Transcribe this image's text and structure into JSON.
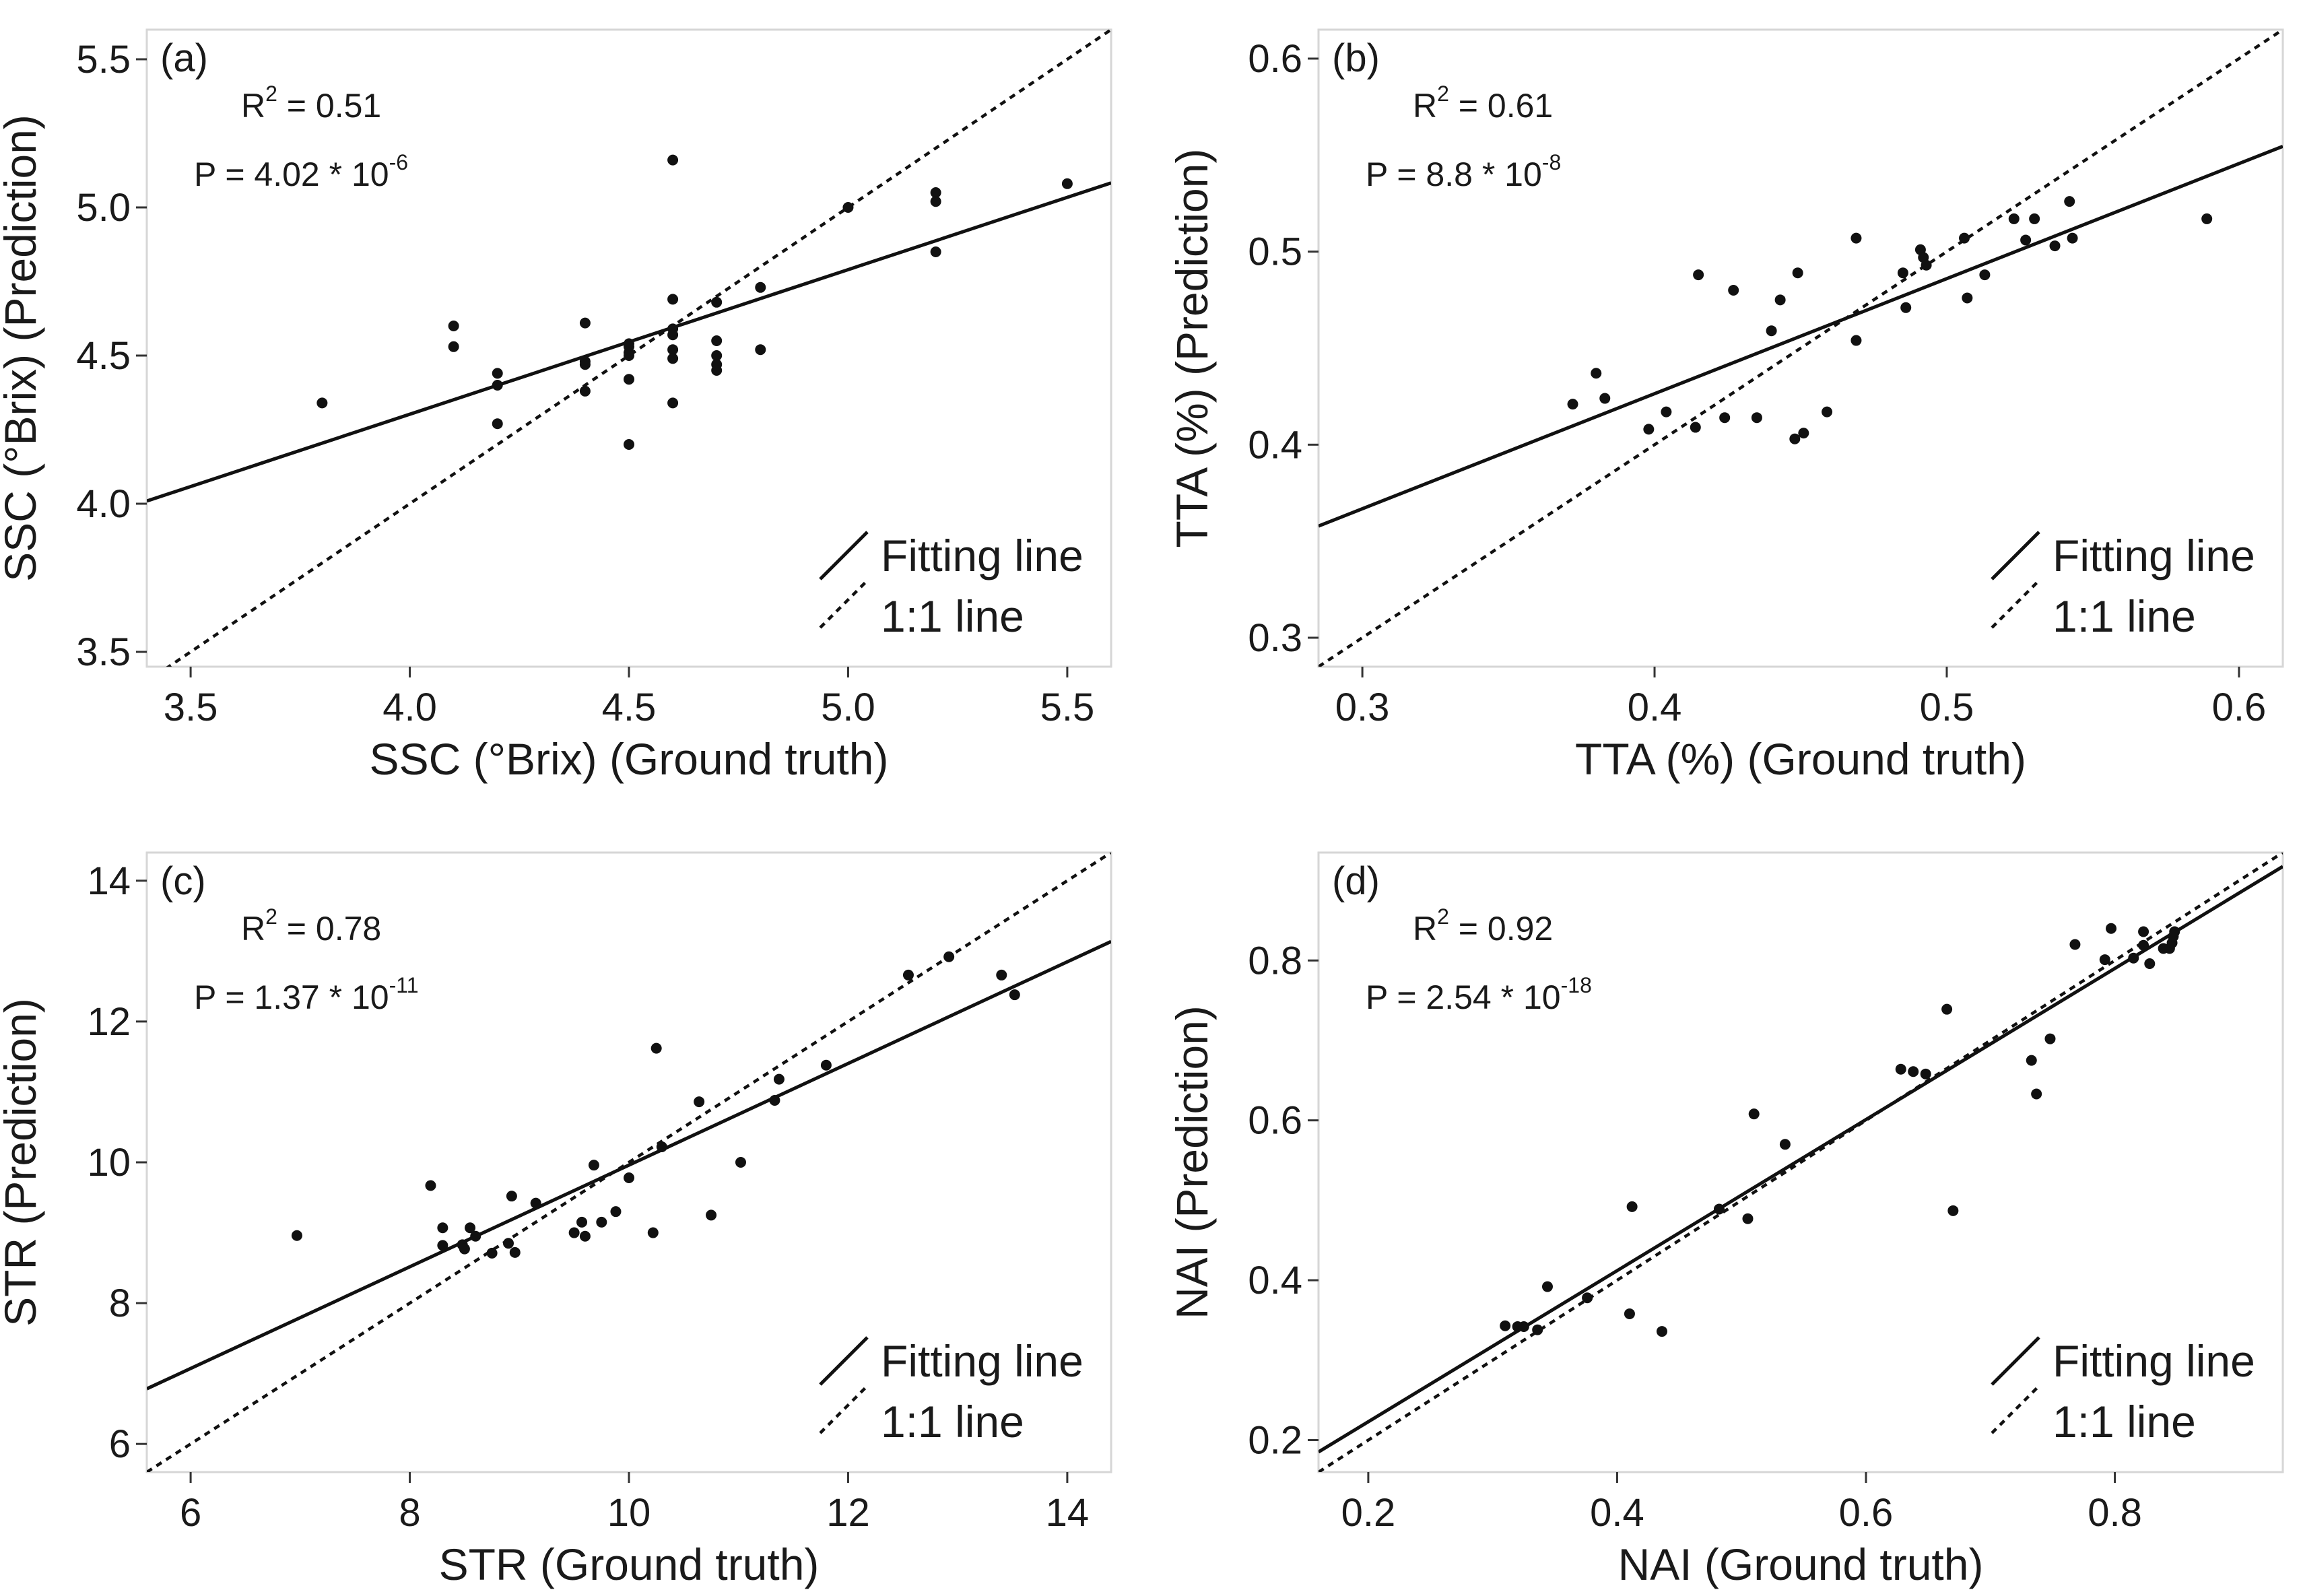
{
  "chart_data": [
    {
      "id": "a",
      "type": "scatter",
      "panel_label": "(a)",
      "xlabel": "SSC (°Brix) (Ground truth)",
      "ylabel": "SSC (°Brix) (Prediction)",
      "xlim": [
        3.4,
        5.6
      ],
      "ylim": [
        3.45,
        5.6
      ],
      "xticks": [
        3.5,
        4.0,
        4.5,
        5.0,
        5.5
      ],
      "yticks": [
        3.5,
        4.0,
        4.5,
        5.0,
        5.5
      ],
      "xtick_labels": [
        "3.5",
        "4.0",
        "4.5",
        "5.0",
        "5.5"
      ],
      "ytick_labels": [
        "3.5",
        "4.0",
        "4.5",
        "5.0",
        "5.5"
      ],
      "stats": {
        "r2_prefix": "R",
        "r2_exp": "2",
        "r2_value": " = 0.51",
        "p_prefix": "P = 4.02 * 10",
        "p_exp": "-6"
      },
      "fit_line": {
        "slope": 0.488,
        "intercept": 2.35
      },
      "legend": {
        "fit_label": "Fitting line",
        "identity_label": "1:1 line"
      },
      "points": [
        [
          3.8,
          4.34
        ],
        [
          4.1,
          4.6
        ],
        [
          4.1,
          4.53
        ],
        [
          4.2,
          4.44
        ],
        [
          4.2,
          4.4
        ],
        [
          4.2,
          4.27
        ],
        [
          4.4,
          4.61
        ],
        [
          4.4,
          4.48
        ],
        [
          4.4,
          4.47
        ],
        [
          4.4,
          4.38
        ],
        [
          4.5,
          4.54
        ],
        [
          4.5,
          4.53
        ],
        [
          4.5,
          4.51
        ],
        [
          4.5,
          4.5
        ],
        [
          4.5,
          4.42
        ],
        [
          4.5,
          4.2
        ],
        [
          4.6,
          5.16
        ],
        [
          4.6,
          4.69
        ],
        [
          4.6,
          4.59
        ],
        [
          4.6,
          4.57
        ],
        [
          4.6,
          4.52
        ],
        [
          4.6,
          4.49
        ],
        [
          4.6,
          4.34
        ],
        [
          4.7,
          4.68
        ],
        [
          4.7,
          4.55
        ],
        [
          4.7,
          4.5
        ],
        [
          4.7,
          4.47
        ],
        [
          4.7,
          4.45
        ],
        [
          4.8,
          4.73
        ],
        [
          4.8,
          4.52
        ],
        [
          5.0,
          5.0
        ],
        [
          5.2,
          5.05
        ],
        [
          5.2,
          5.02
        ],
        [
          5.2,
          4.85
        ],
        [
          5.5,
          5.08
        ]
      ]
    },
    {
      "id": "b",
      "type": "scatter",
      "panel_label": "(b)",
      "xlabel": "TTA (%) (Ground truth)",
      "ylabel": "TTA (%) (Prediction)",
      "xlim": [
        0.285,
        0.615
      ],
      "ylim": [
        0.285,
        0.615
      ],
      "xticks": [
        0.3,
        0.4,
        0.5,
        0.6
      ],
      "yticks": [
        0.3,
        0.4,
        0.5,
        0.6
      ],
      "xtick_labels": [
        "0.3",
        "0.4",
        "0.5",
        "0.6"
      ],
      "ytick_labels": [
        "0.3",
        "0.4",
        "0.5",
        "0.6"
      ],
      "stats": {
        "r2_prefix": "R",
        "r2_exp": "2",
        "r2_value": " = 0.61",
        "p_prefix": "P = 8.8 * 10",
        "p_exp": "-8"
      },
      "fit_line": {
        "slope": 0.596,
        "intercept": 0.188
      },
      "legend": {
        "fit_label": "Fitting line",
        "identity_label": "1:1 line"
      },
      "points": [
        [
          0.372,
          0.421
        ],
        [
          0.38,
          0.437
        ],
        [
          0.383,
          0.424
        ],
        [
          0.398,
          0.408
        ],
        [
          0.404,
          0.417
        ],
        [
          0.414,
          0.409
        ],
        [
          0.415,
          0.488
        ],
        [
          0.424,
          0.414
        ],
        [
          0.427,
          0.48
        ],
        [
          0.435,
          0.414
        ],
        [
          0.44,
          0.459
        ],
        [
          0.443,
          0.475
        ],
        [
          0.448,
          0.403
        ],
        [
          0.449,
          0.489
        ],
        [
          0.451,
          0.406
        ],
        [
          0.459,
          0.417
        ],
        [
          0.469,
          0.507
        ],
        [
          0.469,
          0.454
        ],
        [
          0.485,
          0.489
        ],
        [
          0.486,
          0.471
        ],
        [
          0.491,
          0.501
        ],
        [
          0.492,
          0.497
        ],
        [
          0.493,
          0.493
        ],
        [
          0.506,
          0.507
        ],
        [
          0.507,
          0.476
        ],
        [
          0.513,
          0.488
        ],
        [
          0.523,
          0.517
        ],
        [
          0.527,
          0.506
        ],
        [
          0.53,
          0.517
        ],
        [
          0.537,
          0.503
        ],
        [
          0.542,
          0.526
        ],
        [
          0.543,
          0.507
        ],
        [
          0.589,
          0.517
        ]
      ]
    },
    {
      "id": "c",
      "type": "scatter",
      "panel_label": "(c)",
      "xlabel": "STR (Ground truth)",
      "ylabel": "STR (Prediction)",
      "xlim": [
        5.6,
        14.4
      ],
      "ylim": [
        5.6,
        14.4
      ],
      "xticks": [
        6,
        8,
        10,
        12,
        14
      ],
      "yticks": [
        6,
        8,
        10,
        12,
        14
      ],
      "xtick_labels": [
        "6",
        "8",
        "10",
        "12",
        "14"
      ],
      "ytick_labels": [
        "6",
        "8",
        "10",
        "12",
        "14"
      ],
      "stats": {
        "r2_prefix": "R",
        "r2_exp": "2",
        "r2_value": " = 0.78",
        "p_prefix": "P = 1.37 * 10",
        "p_exp": "-11"
      },
      "fit_line": {
        "slope": 0.722,
        "intercept": 2.74
      },
      "legend": {
        "fit_label": "Fitting line",
        "identity_label": "1:1 line"
      },
      "points": [
        [
          6.97,
          8.96
        ],
        [
          8.19,
          9.67
        ],
        [
          8.3,
          9.07
        ],
        [
          8.3,
          8.82
        ],
        [
          8.48,
          8.83
        ],
        [
          8.5,
          8.77
        ],
        [
          8.55,
          9.07
        ],
        [
          8.6,
          8.95
        ],
        [
          8.75,
          8.71
        ],
        [
          8.9,
          8.85
        ],
        [
          8.93,
          9.52
        ],
        [
          8.96,
          8.72
        ],
        [
          9.15,
          9.42
        ],
        [
          9.5,
          9.0
        ],
        [
          9.57,
          9.15
        ],
        [
          9.6,
          8.95
        ],
        [
          9.68,
          9.96
        ],
        [
          9.75,
          9.15
        ],
        [
          9.88,
          9.3
        ],
        [
          10.0,
          9.78
        ],
        [
          10.22,
          9.0
        ],
        [
          10.25,
          11.62
        ],
        [
          10.3,
          10.22
        ],
        [
          10.64,
          10.86
        ],
        [
          10.75,
          9.25
        ],
        [
          11.02,
          10.0
        ],
        [
          11.33,
          10.88
        ],
        [
          11.37,
          11.18
        ],
        [
          11.8,
          11.38
        ],
        [
          12.55,
          12.66
        ],
        [
          12.92,
          12.92
        ],
        [
          13.4,
          12.66
        ],
        [
          13.52,
          12.38
        ]
      ]
    },
    {
      "id": "d",
      "type": "scatter",
      "panel_label": "(d)",
      "xlabel": "NAI (Ground truth)",
      "ylabel": "NAI (Prediction)",
      "xlim": [
        0.16,
        0.935
      ],
      "ylim": [
        0.16,
        0.935
      ],
      "xticks": [
        0.2,
        0.4,
        0.6,
        0.8
      ],
      "yticks": [
        0.2,
        0.4,
        0.6,
        0.8
      ],
      "xtick_labels": [
        "0.2",
        "0.4",
        "0.6",
        "0.8"
      ],
      "ytick_labels": [
        "0.2",
        "0.4",
        "0.6",
        "0.8"
      ],
      "stats": {
        "r2_prefix": "R",
        "r2_exp": "2",
        "r2_value": " = 0.92",
        "p_prefix": "P = 2.54 * 10",
        "p_exp": "-18"
      },
      "fit_line": {
        "slope": 0.945,
        "intercept": 0.034
      },
      "legend": {
        "fit_label": "Fitting line",
        "identity_label": "1:1 line"
      },
      "points": [
        [
          0.31,
          0.343
        ],
        [
          0.32,
          0.342
        ],
        [
          0.325,
          0.342
        ],
        [
          0.336,
          0.338
        ],
        [
          0.344,
          0.392
        ],
        [
          0.376,
          0.378
        ],
        [
          0.41,
          0.358
        ],
        [
          0.412,
          0.492
        ],
        [
          0.436,
          0.336
        ],
        [
          0.482,
          0.489
        ],
        [
          0.505,
          0.477
        ],
        [
          0.51,
          0.608
        ],
        [
          0.535,
          0.57
        ],
        [
          0.628,
          0.664
        ],
        [
          0.638,
          0.661
        ],
        [
          0.648,
          0.658
        ],
        [
          0.665,
          0.739
        ],
        [
          0.67,
          0.487
        ],
        [
          0.733,
          0.675
        ],
        [
          0.737,
          0.633
        ],
        [
          0.748,
          0.702
        ],
        [
          0.768,
          0.82
        ],
        [
          0.792,
          0.801
        ],
        [
          0.797,
          0.84
        ],
        [
          0.815,
          0.803
        ],
        [
          0.823,
          0.836
        ],
        [
          0.823,
          0.819
        ],
        [
          0.828,
          0.796
        ],
        [
          0.839,
          0.815
        ],
        [
          0.844,
          0.815
        ],
        [
          0.846,
          0.822
        ],
        [
          0.847,
          0.83
        ],
        [
          0.848,
          0.836
        ]
      ]
    }
  ]
}
